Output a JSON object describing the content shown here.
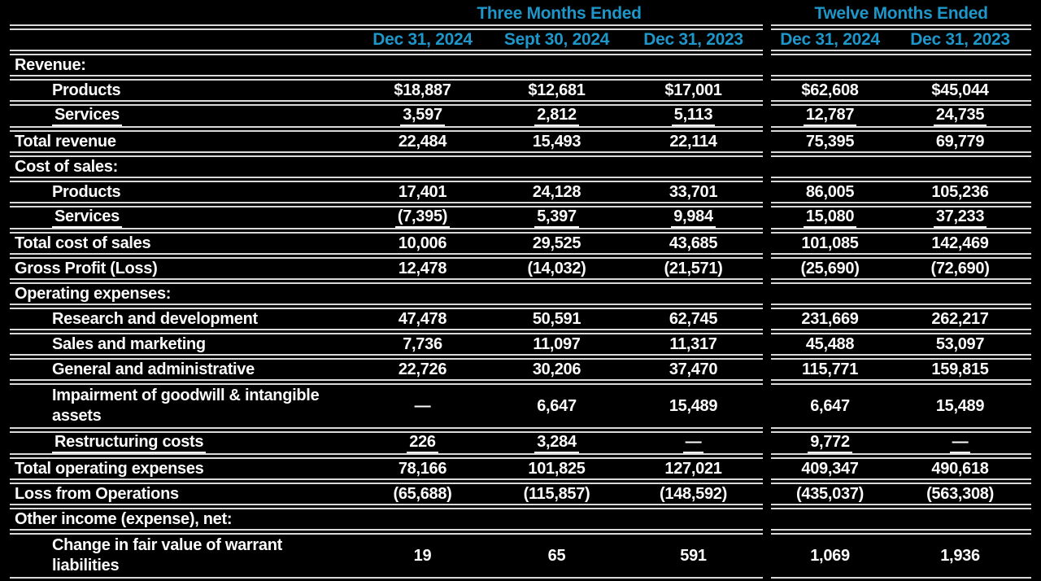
{
  "theme": {
    "background": "#000000",
    "text_color": "#fbfbfb",
    "header_color": "#1e96c8",
    "line_color": "#d9d9d9"
  },
  "table": {
    "group_headers": [
      {
        "label": "Three Months Ended",
        "span": 3
      },
      {
        "label": "Twelve Months Ended",
        "span": 2
      }
    ],
    "column_headers": [
      "Dec 31, 2024",
      "Sept 30, 2024",
      "Dec 31, 2023",
      "Dec 31, 2024",
      "Dec 31, 2023"
    ],
    "rows": [
      {
        "label": "Revenue:",
        "type": "section",
        "values": [
          "",
          "",
          "",
          "",
          ""
        ]
      },
      {
        "label": "Products",
        "type": "indent",
        "values": [
          "$18,887",
          "$12,681",
          "$17,001",
          "$62,608",
          "$45,044"
        ]
      },
      {
        "label": "Services",
        "type": "indent",
        "underline": true,
        "values": [
          "3,597",
          "2,812",
          "5,113",
          "12,787",
          "24,735"
        ]
      },
      {
        "label": "Total revenue",
        "type": "total",
        "values": [
          "22,484",
          "15,493",
          "22,114",
          "75,395",
          "69,779"
        ]
      },
      {
        "label": "Cost of sales:",
        "type": "section",
        "values": [
          "",
          "",
          "",
          "",
          ""
        ]
      },
      {
        "label": "Products",
        "type": "indent",
        "values": [
          "17,401",
          "24,128",
          "33,701",
          "86,005",
          "105,236"
        ]
      },
      {
        "label": "Services",
        "type": "indent",
        "underline": true,
        "values": [
          "(7,395)",
          "5,397",
          "9,984",
          "15,080",
          "37,233"
        ]
      },
      {
        "label": "Total cost of sales",
        "type": "total",
        "values": [
          "10,006",
          "29,525",
          "43,685",
          "101,085",
          "142,469"
        ]
      },
      {
        "label": "Gross Profit (Loss)",
        "type": "total",
        "values": [
          "12,478",
          "(14,032)",
          "(21,571)",
          "(25,690)",
          "(72,690)"
        ]
      },
      {
        "label": "Operating expenses:",
        "type": "section",
        "values": [
          "",
          "",
          "",
          "",
          ""
        ]
      },
      {
        "label": "Research and development",
        "type": "indent",
        "values": [
          "47,478",
          "50,591",
          "62,745",
          "231,669",
          "262,217"
        ]
      },
      {
        "label": "Sales and marketing",
        "type": "indent",
        "values": [
          "7,736",
          "11,097",
          "11,317",
          "45,488",
          "53,097"
        ]
      },
      {
        "label": "General and administrative",
        "type": "indent",
        "values": [
          "22,726",
          "30,206",
          "37,470",
          "115,771",
          "159,815"
        ]
      },
      {
        "label": "Impairment of goodwill & intangible assets",
        "type": "indent",
        "tall": true,
        "values": [
          "—",
          "6,647",
          "15,489",
          "6,647",
          "15,489"
        ]
      },
      {
        "label": "Restructuring costs",
        "type": "indent",
        "underline": true,
        "values": [
          "226",
          "3,284",
          "—",
          "9,772",
          "—"
        ]
      },
      {
        "label": "Total operating expenses",
        "type": "total",
        "values": [
          "78,166",
          "101,825",
          "127,021",
          "409,347",
          "490,618"
        ]
      },
      {
        "label": "Loss from Operations",
        "type": "total",
        "values": [
          "(65,688)",
          "(115,857)",
          "(148,592)",
          "(435,037)",
          "(563,308)"
        ]
      },
      {
        "label": "Other income (expense), net:",
        "type": "section",
        "values": [
          "",
          "",
          "",
          "",
          ""
        ]
      },
      {
        "label": "Change in fair value of warrant liabilities",
        "type": "indent",
        "tall": true,
        "values": [
          "19",
          "65",
          "591",
          "1,069",
          "1,936"
        ]
      }
    ]
  }
}
